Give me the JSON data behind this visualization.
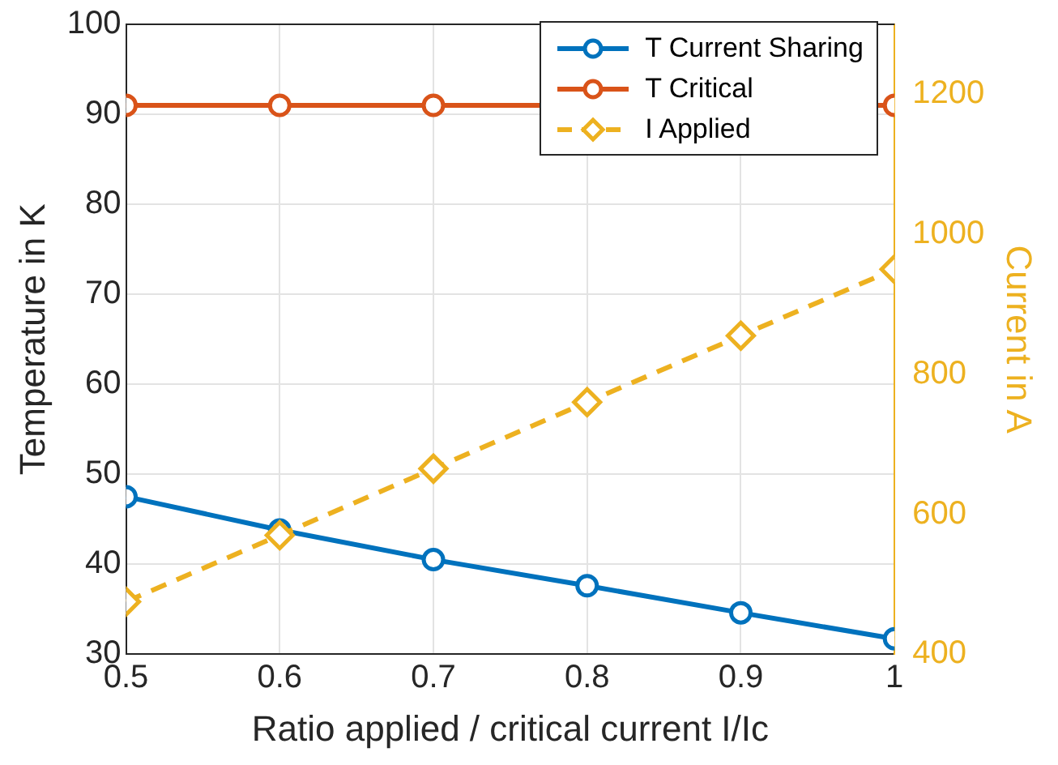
{
  "chart_data": {
    "type": "line",
    "xlabel": "Ratio applied / critical current I/Ic",
    "ylabel": "Temperature in K",
    "y2label": "Current in A",
    "x": [
      0.5,
      0.6,
      0.7,
      0.8,
      0.9,
      1
    ],
    "series": [
      {
        "name": "T Current Sharing",
        "color": "#0072bd",
        "values": [
          47.5,
          43.8,
          40.5,
          37.6,
          34.6,
          31.7
        ],
        "marker": "circle",
        "line_style": "solid"
      },
      {
        "name": "T Critical",
        "color": "#d95319",
        "values": [
          91,
          91,
          91,
          null,
          null,
          91
        ],
        "marker": "circle",
        "line_style": "solid"
      },
      {
        "name": "I Applied",
        "color": "#edb120",
        "values": [
          475,
          570,
          665,
          760,
          855,
          950
        ],
        "marker": "diamond",
        "line_style": "dashed",
        "axis": "y2"
      }
    ],
    "xlim": [
      0.5,
      1
    ],
    "xticks": [
      0.5,
      0.6,
      0.7,
      0.8,
      0.9,
      1
    ],
    "ylim": [
      30,
      100
    ],
    "yticks": [
      30,
      40,
      50,
      60,
      70,
      80,
      90,
      100
    ],
    "y2lim": [
      400,
      1300
    ],
    "y2ticks": [
      400,
      600,
      800,
      1000,
      1200
    ],
    "grid": true,
    "legend": "top right"
  }
}
